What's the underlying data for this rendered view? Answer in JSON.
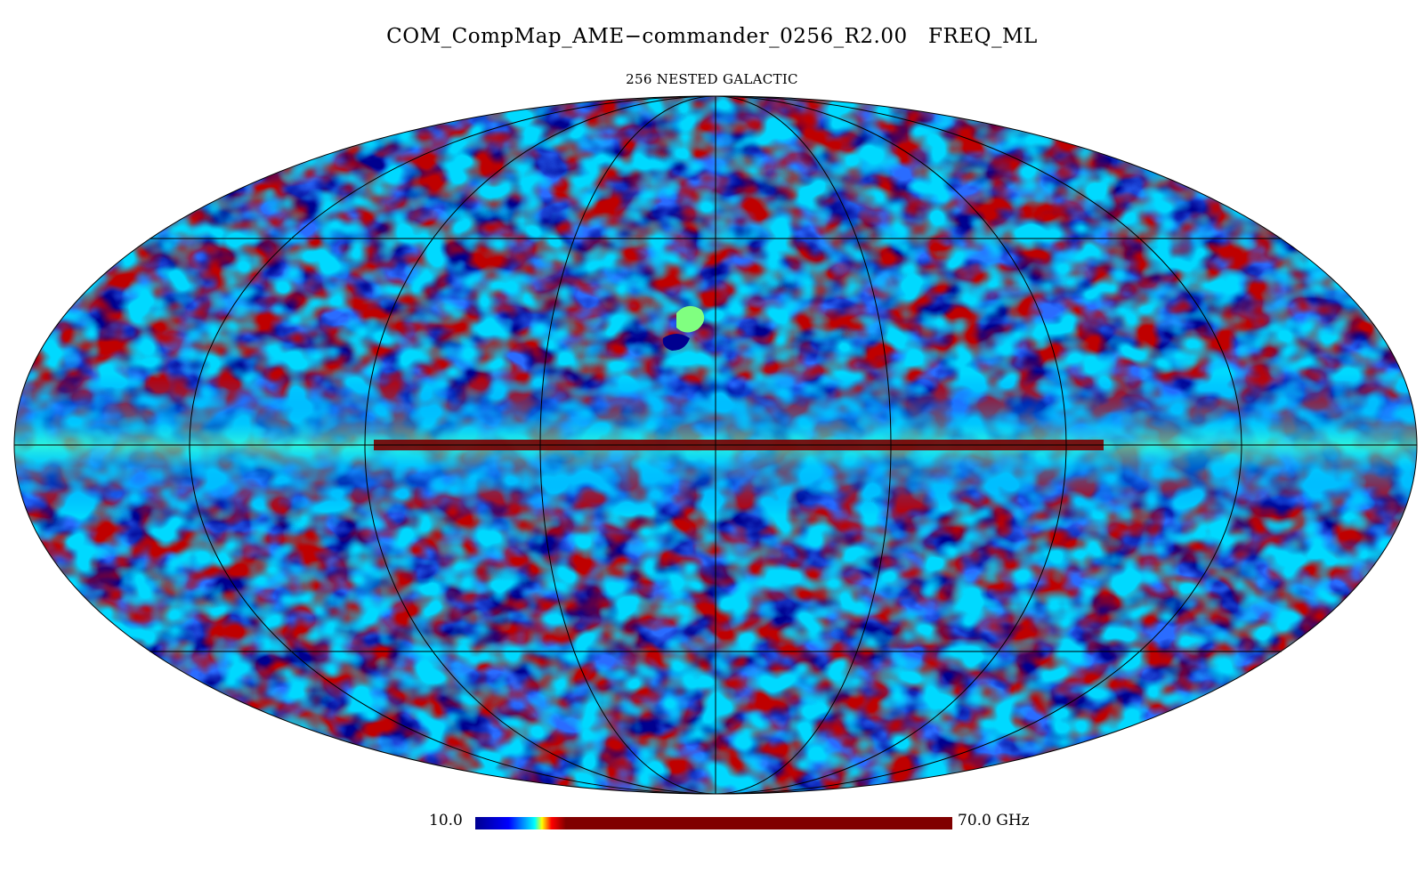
{
  "map": {
    "title": "COM_CompMap_AME−commander_0256_R2.00   FREQ_ML",
    "subtitle": "256 NESTED GALACTIC",
    "projection": "mollweide",
    "colormap": "jet",
    "graticule": true,
    "colorbar": {
      "min_label": "10.0",
      "max_label": "70.0 GHz",
      "min": 10.0,
      "max": 70.0,
      "unit": "GHz"
    }
  },
  "colors": {
    "background": "#ffffff",
    "colormap_stops": [
      "#00008f",
      "#0000ff",
      "#00ffff",
      "#7fff7f",
      "#ffff00",
      "#ff0000",
      "#800000"
    ]
  }
}
